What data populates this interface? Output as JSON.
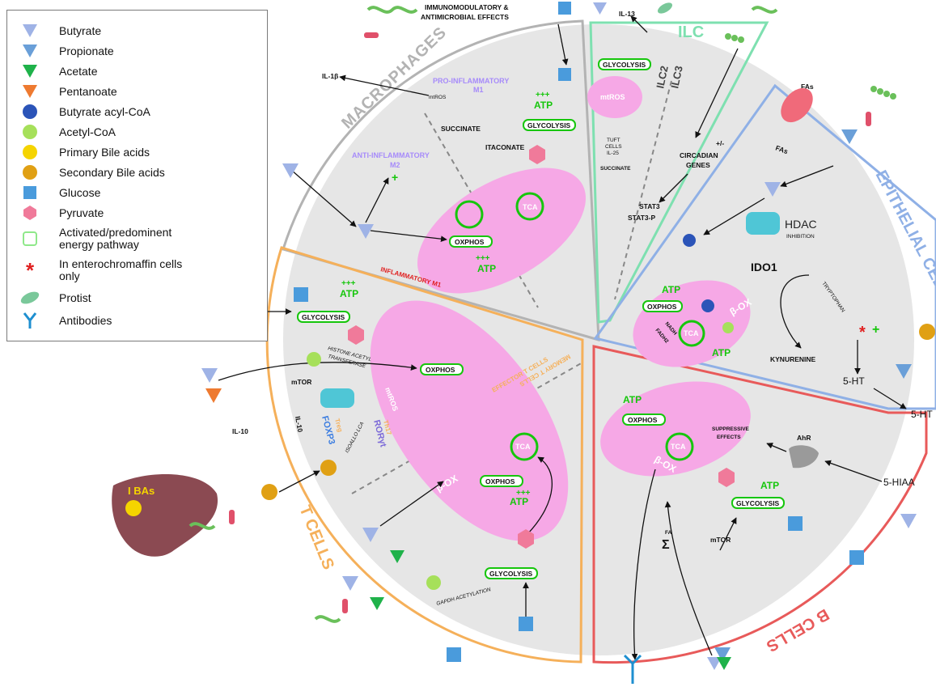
{
  "legend": {
    "items": [
      {
        "icon": "butyrate-icon",
        "label": "Butyrate"
      },
      {
        "icon": "propionate-icon",
        "label": "Propionate"
      },
      {
        "icon": "acetate-icon",
        "label": "Acetate"
      },
      {
        "icon": "pentanoate-icon",
        "label": "Pentanoate"
      },
      {
        "icon": "butyrate-acyl-coa-icon",
        "label": "Butyrate acyl-CoA"
      },
      {
        "icon": "acetyl-coa-icon",
        "label": "Acetyl-CoA"
      },
      {
        "icon": "primary-bile-acid-icon",
        "label": "Primary Bile acids"
      },
      {
        "icon": "secondary-bile-acid-icon",
        "label": "Secondary Bile acids"
      },
      {
        "icon": "glucose-icon",
        "label": "Glucose"
      },
      {
        "icon": "pyruvate-icon",
        "label": "Pyruvate"
      },
      {
        "icon": "energy-pathway-icon",
        "label": "Activated/predominent energy pathway"
      },
      {
        "icon": "asterisk-icon",
        "label": "In enterochromaffin cells only"
      },
      {
        "icon": "protist-icon",
        "label": "Protist"
      },
      {
        "icon": "antibodies-icon",
        "label": "Antibodies"
      }
    ]
  },
  "sectors": {
    "macrophages": "MACROPHAGES",
    "ilc": "ILC",
    "epithelial": "EPITHELIAL CELLS",
    "b_cells": "B CELLS",
    "t_cells": "T CELLS"
  },
  "macrophages": {
    "immuno": "IMMUNOMODULATORY &",
    "antimicrobial": "ANTIMICROBIAL EFFECTS",
    "il1b": "IL-1β",
    "mtros": "mtROS",
    "pro1": "PRO-INFLAMMATORY",
    "pro2": "M1",
    "plus3": "+++",
    "atp": "ATP",
    "glycolysis": "GLYCOLYSIS",
    "succinate": "SUCCINATE",
    "itaconate": "ITACONATE",
    "anti1": "ANTI-INFLAMMATORY",
    "anti2": "M2",
    "plus": "+",
    "tca": "TCA",
    "oxphos": "OXPHOS",
    "atp2": "ATP",
    "plus3b": "+++",
    "inflammatory": "INFLAMMATORY M1"
  },
  "ilc": {
    "il13": "IL-13",
    "glycolysis": "GLYCOLYSIS",
    "mtros": "mtROS",
    "ilc2": "ILC2",
    "ilc3": "ILC3",
    "tuft1": "TUFT",
    "tuft2": "CELLS",
    "tuft3": "IL-25",
    "succinate": "SUCCINATE",
    "plusminus": "+/-",
    "circ1": "CIRCADIAN",
    "circ2": "GENES",
    "stat3": "STAT3",
    "stat3p": "STAT3-P"
  },
  "epithelial": {
    "fas_top": "FAs",
    "fas_bottom": "FAs",
    "hdac": "HDAC",
    "inhibition": "INHIBITION",
    "ido1": "IDO1",
    "tryptophan": "TRYPTOPHAN",
    "kynurenine": "KYNURENINE",
    "atp": "ATP",
    "oxphos": "OXPHOS",
    "nadh": "NADH",
    "fadh": "FADH2",
    "tca": "TCA",
    "box": "β-OX",
    "atp2": "ATP",
    "ht": "5-HT",
    "ht2": "5-HT",
    "plus": "+"
  },
  "b_cells": {
    "atp": "ATP",
    "oxphos": "OXPHOS",
    "tca": "TCA",
    "box": "β-OX",
    "suppressive1": "SUPPRESSIVE",
    "suppressive2": "EFFECTS",
    "ahr": "AhR",
    "hiaa": "5-HIAA",
    "atp2": "ATP",
    "glycolysis": "GLYCOLYSIS",
    "mtor": "mTOR",
    "fa": "FA",
    "sigma": "Σ"
  },
  "t_cells": {
    "plus3": "+++",
    "atp": "ATP",
    "glycolysis": "GLYCOLYSIS",
    "histone1": "HISTONE ACETYL",
    "histone2": "TRANSFERASE",
    "mtor": "mTOR",
    "oxphos": "OXPHOS",
    "mtros": "mtROS",
    "il10a": "IL-10",
    "il10b": "IL-10",
    "foxp3": "FOXP3",
    "treg": "Treg",
    "isoallo": "ISOALLO LCA",
    "th17": "Th17",
    "roryt": "RORγt",
    "effector": "EFFECTOR T CELLS",
    "memory": "MEMORY T CELLS",
    "tca": "TCA",
    "oxphos2": "OXPHOS",
    "atp2": "ATP",
    "plus3b": "+++",
    "box": "β-OX",
    "glycolysis2": "GLYCOLYSIS",
    "gapdh": "GAPDH ACETYLATION",
    "liver": "I BAs"
  },
  "colors": {
    "macrophages": "#b3b3b3",
    "ilc": "#7ee0b0",
    "epithelial": "#8fb0e6",
    "b_cells": "#e85a5a",
    "t_cells": "#f5b05a",
    "disk": "#e6e6e6",
    "mito": "#f6a8e6",
    "green": "#16c60c",
    "purple": "#a78bfa",
    "red": "#e02020",
    "butyrate": "#9fb3e6",
    "propionate": "#6a9fd8",
    "acetate": "#1fb24a",
    "pentanoate": "#ee7a30",
    "liver": "#8b4a52"
  }
}
